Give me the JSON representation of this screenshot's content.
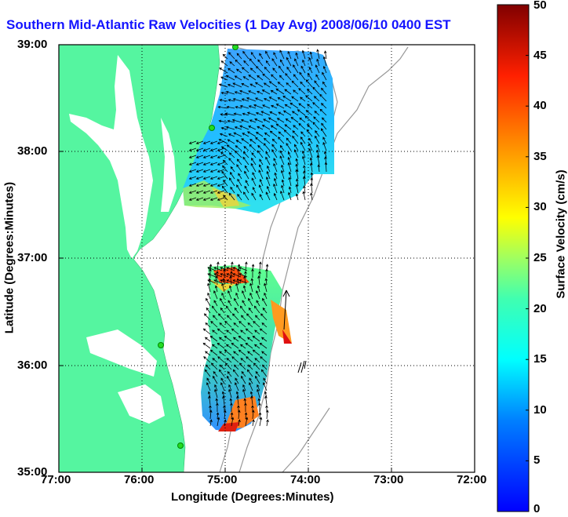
{
  "title": "Southern Mid-Atlantic Raw Velocities (1 Day Avg) 2008/06/10 0400 EST",
  "axes": {
    "xlabel": "Longitude (Degrees:Minutes)",
    "ylabel": "Latitude (Degrees:Minutes)",
    "xticks": [
      "77:00",
      "76:00",
      "75:00",
      "74:00",
      "73:00",
      "72:00"
    ],
    "yticks": [
      "39:00",
      "38:00",
      "37:00",
      "36:00",
      "35:00"
    ],
    "grid": true
  },
  "colorbar": {
    "label": "Surface Velocity (cm/s)",
    "min": 0,
    "max": 50,
    "ticks": [
      "0",
      "5",
      "10",
      "15",
      "20",
      "25",
      "30",
      "35",
      "40",
      "45",
      "50"
    ]
  },
  "colors": {
    "land": "#55f5a0",
    "title": "#1414ff"
  },
  "legend_icons": [
    "land-mass",
    "hf-radar-stations",
    "velocity-vectors",
    "bathymetry-contours"
  ]
}
